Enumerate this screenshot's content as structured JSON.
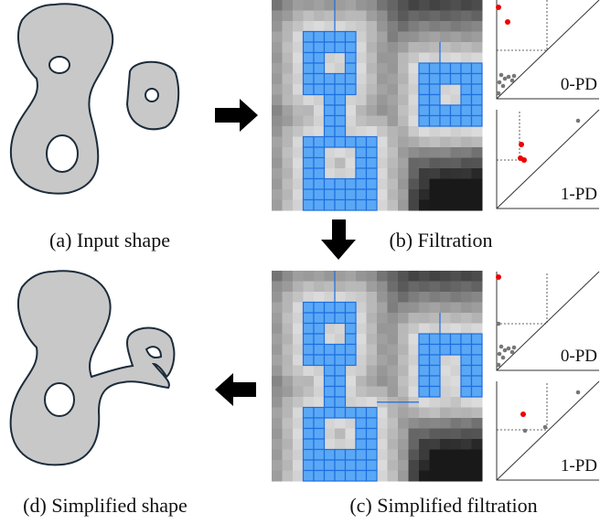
{
  "panels": [
    {
      "caption": "(a) Input shape"
    },
    {
      "caption": "(b) Filtration",
      "diagrams": [
        "0-PD",
        "1-PD"
      ]
    },
    {
      "caption": "(c) Simplified filtration",
      "diagrams": [
        "0-PD",
        "1-PD"
      ]
    },
    {
      "caption": "(d) Simplified shape"
    }
  ]
}
